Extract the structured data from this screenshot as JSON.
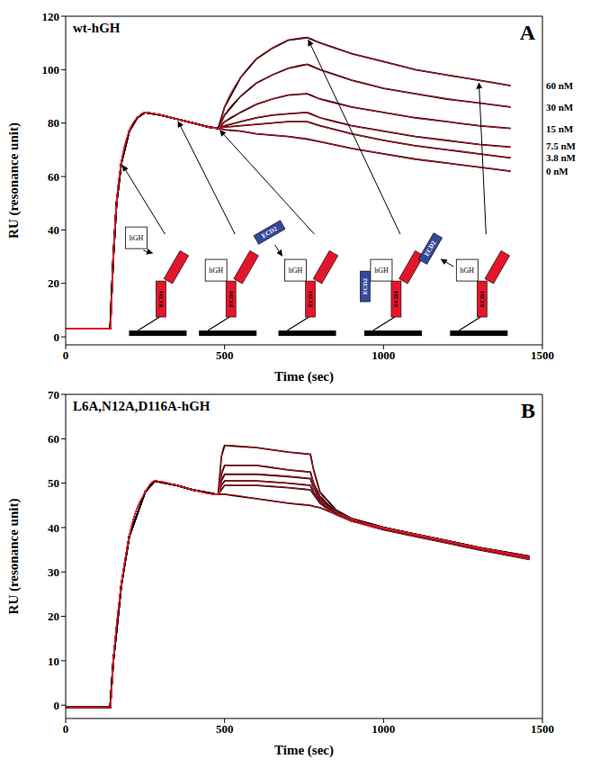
{
  "chart_data": [
    {
      "type": "line",
      "title": "wt-hGH",
      "x_label": "Time (sec)",
      "y_label": "RU (resonance unit)",
      "annotations": {
        "panel": "A",
        "schematic": [
          {
            "ligand": "hGH",
            "receptor": "ECD1"
          },
          {
            "ligand": "hGH",
            "receptor": "ECD1"
          },
          {
            "ligand": "hGH",
            "receptor": "ECD1",
            "second_receptor": "ECD2"
          },
          {
            "ligand": "hGH",
            "receptor": "ECD1",
            "second_receptor": "ECD2"
          },
          {
            "ligand": "hGH",
            "receptor": "ECD1",
            "second_receptor": "ECD2"
          }
        ]
      },
      "x": [
        0,
        100,
        140,
        150,
        160,
        175,
        200,
        225,
        250,
        300,
        350,
        400,
        450,
        480,
        500,
        550,
        600,
        650,
        700,
        760,
        800,
        900,
        1000,
        1100,
        1200,
        1300,
        1400
      ],
      "series": [
        {
          "name": "60 nM",
          "color": "#000000",
          "values": [
            3,
            3,
            3,
            30,
            50,
            65,
            77,
            82,
            84,
            83,
            81.5,
            80,
            78.5,
            78,
            86,
            97,
            104,
            108,
            111,
            112,
            110,
            106,
            103,
            100,
            98,
            96,
            94
          ]
        },
        {
          "name": "30 nM",
          "color": "#000000",
          "values": [
            3,
            3,
            3,
            30,
            50,
            65,
            77,
            82,
            84,
            83,
            81.5,
            80,
            78.5,
            78,
            83,
            90,
            95,
            98,
            100.5,
            102,
            100,
            96,
            93,
            91,
            89,
            87.5,
            86
          ]
        },
        {
          "name": "15 nM",
          "color": "#000000",
          "values": [
            3,
            3,
            3,
            30,
            50,
            65,
            77,
            82,
            84,
            83,
            81.5,
            80,
            78.5,
            78,
            80.5,
            84,
            87,
            89,
            90.5,
            91,
            89,
            86,
            84,
            82,
            80.5,
            79,
            78
          ]
        },
        {
          "name": "7.5 nM",
          "color": "#000000",
          "values": [
            3,
            3,
            3,
            30,
            50,
            65,
            77,
            82,
            84,
            83,
            81.5,
            80,
            78.5,
            78,
            79,
            80.5,
            82,
            83,
            83.5,
            84,
            82,
            79,
            77,
            75,
            73.5,
            72,
            71
          ]
        },
        {
          "name": "3.8 nM",
          "color": "#000000",
          "values": [
            3,
            3,
            3,
            30,
            50,
            65,
            77,
            82,
            84,
            83,
            81.5,
            80,
            78.5,
            78,
            78.5,
            79,
            79.5,
            80,
            80.5,
            80.5,
            79,
            76,
            73.5,
            71.5,
            70,
            68.5,
            67
          ]
        },
        {
          "name": "0 nM",
          "color": "#000000",
          "values": [
            3,
            3,
            3,
            30,
            50,
            65,
            77,
            82,
            84,
            83,
            81.5,
            80,
            78.5,
            78,
            77.5,
            77,
            76,
            75.5,
            75,
            74,
            73,
            70.5,
            68.5,
            66.5,
            65,
            63.5,
            62
          ]
        }
      ],
      "xlim": [
        0,
        1500
      ],
      "xticks": [
        0,
        500,
        1000,
        1500
      ],
      "ylim": [
        -3,
        120
      ],
      "yticks": [
        0,
        20,
        40,
        60,
        80,
        100,
        120
      ],
      "grid": false
    },
    {
      "type": "line",
      "title": "L6A,N12A,D116A-hGH",
      "x_label": "Time (sec)",
      "y_label": "RU (resonance unit)",
      "annotations": {
        "panel": "B"
      },
      "x": [
        0,
        100,
        140,
        150,
        175,
        200,
        250,
        280,
        350,
        400,
        470,
        480,
        490,
        500,
        600,
        700,
        770,
        780,
        800,
        850,
        900,
        1000,
        1100,
        1200,
        1300,
        1460
      ],
      "series": [
        {
          "color": "#000000",
          "values": [
            -0.5,
            -0.5,
            -0.5,
            10,
            27,
            38,
            48,
            50.5,
            49.5,
            48.5,
            47.5,
            47.5,
            56,
            58.5,
            58,
            57,
            56.5,
            53,
            48,
            44,
            42,
            40,
            38.5,
            37,
            35.5,
            33.5
          ]
        },
        {
          "color": "#000000",
          "values": [
            -0.5,
            -0.5,
            -0.5,
            10,
            27,
            38,
            48,
            50.5,
            49.5,
            48.5,
            47.5,
            47.5,
            52,
            54,
            54,
            53,
            52.5,
            50,
            47,
            43.5,
            42,
            40,
            38.5,
            37,
            35.5,
            33.5
          ]
        },
        {
          "color": "#000000",
          "values": [
            -0.5,
            -0.5,
            -0.5,
            10,
            27,
            38,
            48,
            50.5,
            49.5,
            48.5,
            47.5,
            47.5,
            50.5,
            52,
            52,
            51.5,
            51,
            49,
            46.5,
            43.5,
            42,
            40,
            38.5,
            37,
            35.5,
            33.3
          ]
        },
        {
          "color": "#000000",
          "values": [
            -0.5,
            -0.5,
            -0.5,
            10,
            27,
            38,
            48,
            50.5,
            49.5,
            48.5,
            47.5,
            47.5,
            49.5,
            50.5,
            50.5,
            50,
            49.5,
            48,
            46,
            43,
            41.5,
            39.8,
            38.3,
            36.8,
            35.3,
            33
          ]
        },
        {
          "color": "#000000",
          "values": [
            -0.5,
            -0.5,
            -0.5,
            10,
            27,
            38,
            48,
            50.5,
            49.5,
            48.5,
            47.5,
            47.5,
            48.5,
            49.5,
            49.5,
            49,
            48.5,
            47.5,
            45.5,
            43,
            41.5,
            39.8,
            38.3,
            36.8,
            35.3,
            33
          ]
        },
        {
          "color": "#000000",
          "values": [
            -0.5,
            -0.5,
            -0.5,
            10,
            27,
            38,
            48,
            50.5,
            49.5,
            48.5,
            47.5,
            47.5,
            47.5,
            47.5,
            46.5,
            45.5,
            45,
            44.8,
            44.5,
            43,
            41.5,
            39.5,
            38,
            36.5,
            35,
            32.8
          ]
        }
      ],
      "xlim": [
        0,
        1500
      ],
      "xticks": [
        0,
        500,
        1000,
        1500
      ],
      "ylim": [
        -3,
        70
      ],
      "yticks": [
        0,
        10,
        20,
        30,
        40,
        50,
        60,
        70
      ],
      "grid": false
    }
  ]
}
